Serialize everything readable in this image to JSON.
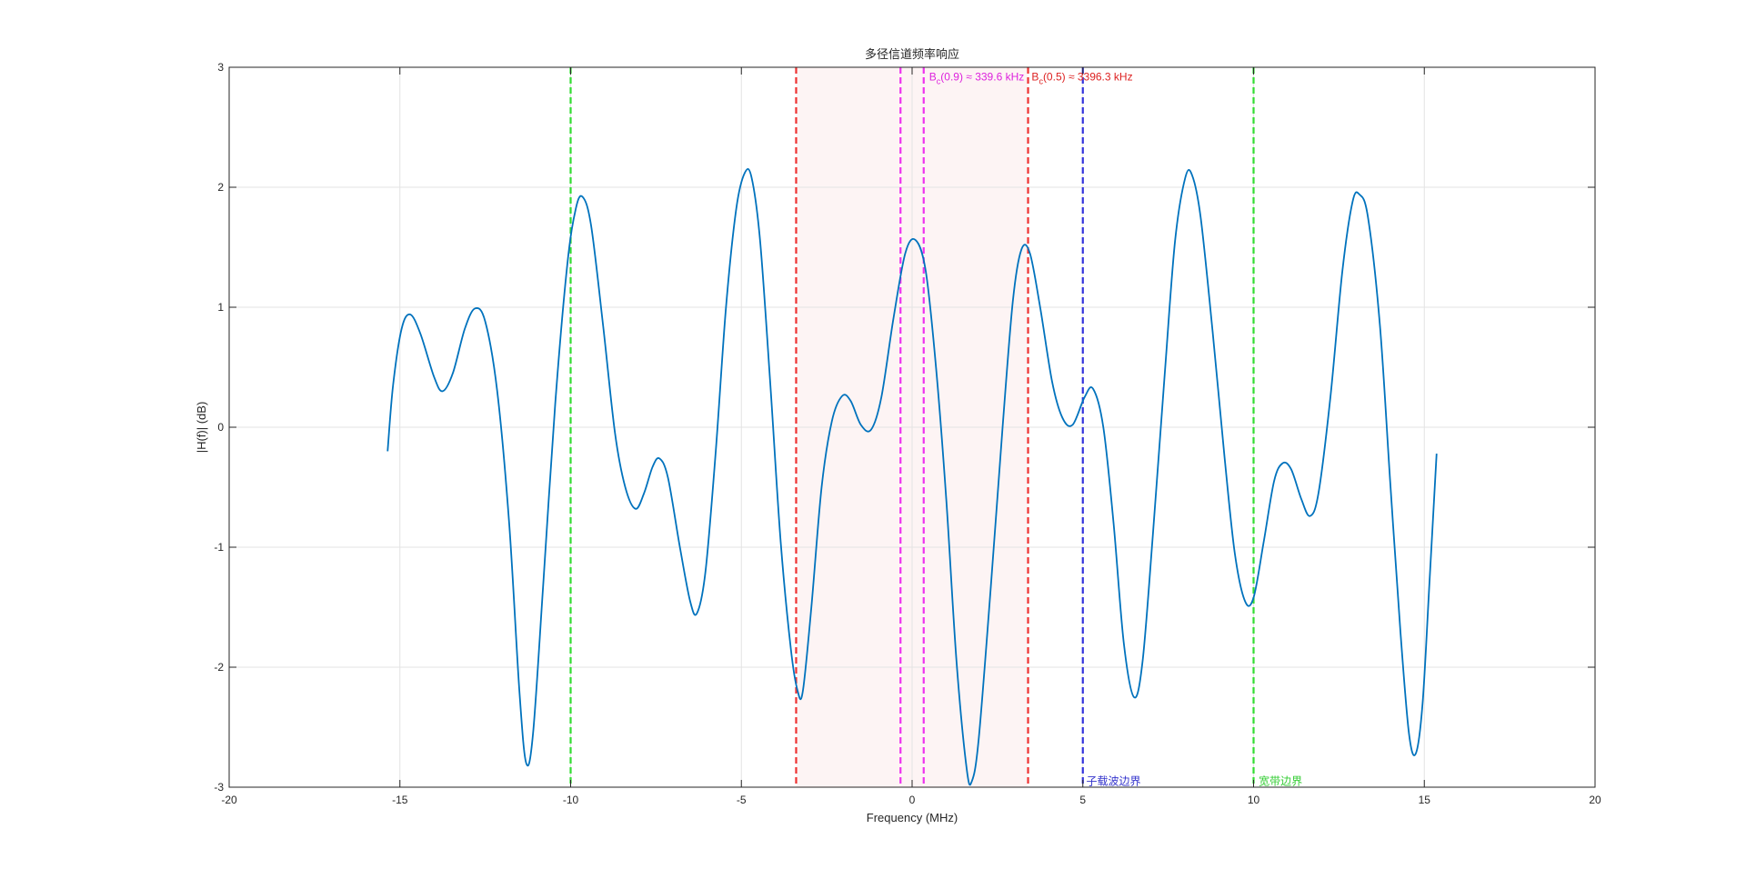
{
  "chart_data": {
    "type": "line",
    "title": "多径信道频率响应",
    "xlabel": "Frequency (MHz)",
    "ylabel": "|H(f)| (dB)",
    "xlim": [
      -20,
      20
    ],
    "ylim": [
      -3,
      3
    ],
    "xticks": [
      -20,
      -15,
      -10,
      -5,
      0,
      5,
      10,
      15,
      20
    ],
    "yticks": [
      -3,
      -2,
      -1,
      0,
      1,
      2,
      3
    ],
    "xtick_labels": [
      "-20",
      "-15",
      "-10",
      "-5",
      "0",
      "5",
      "10",
      "15",
      "20"
    ],
    "ytick_labels": [
      "-3",
      "-2",
      "-1",
      "0",
      "1",
      "2",
      "3"
    ],
    "grid": true,
    "series": [
      {
        "color": "#0072BD",
        "points": [
          [
            -15.36,
            -0.2
          ],
          [
            -15.2,
            0.35
          ],
          [
            -14.95,
            0.82
          ],
          [
            -14.7,
            0.94
          ],
          [
            -14.4,
            0.78
          ],
          [
            -14.0,
            0.42
          ],
          [
            -13.75,
            0.3
          ],
          [
            -13.45,
            0.45
          ],
          [
            -13.1,
            0.82
          ],
          [
            -12.8,
            0.99
          ],
          [
            -12.5,
            0.88
          ],
          [
            -12.15,
            0.3
          ],
          [
            -11.8,
            -0.8
          ],
          [
            -11.5,
            -2.2
          ],
          [
            -11.3,
            -2.8
          ],
          [
            -11.1,
            -2.55
          ],
          [
            -10.8,
            -1.3
          ],
          [
            -10.45,
            0.2
          ],
          [
            -10.1,
            1.35
          ],
          [
            -9.85,
            1.82
          ],
          [
            -9.65,
            1.92
          ],
          [
            -9.4,
            1.68
          ],
          [
            -9.05,
            0.85
          ],
          [
            -8.7,
            -0.05
          ],
          [
            -8.4,
            -0.5
          ],
          [
            -8.1,
            -0.68
          ],
          [
            -7.85,
            -0.55
          ],
          [
            -7.6,
            -0.33
          ],
          [
            -7.4,
            -0.26
          ],
          [
            -7.15,
            -0.42
          ],
          [
            -6.8,
            -1.0
          ],
          [
            -6.5,
            -1.45
          ],
          [
            -6.3,
            -1.55
          ],
          [
            -6.05,
            -1.2
          ],
          [
            -5.75,
            -0.2
          ],
          [
            -5.45,
            1.0
          ],
          [
            -5.15,
            1.82
          ],
          [
            -4.9,
            2.12
          ],
          [
            -4.7,
            2.08
          ],
          [
            -4.45,
            1.55
          ],
          [
            -4.15,
            0.35
          ],
          [
            -3.85,
            -0.95
          ],
          [
            -3.55,
            -1.85
          ],
          [
            -3.35,
            -2.2
          ],
          [
            -3.2,
            -2.2
          ],
          [
            -2.95,
            -1.5
          ],
          [
            -2.65,
            -0.5
          ],
          [
            -2.35,
            0.05
          ],
          [
            -2.05,
            0.26
          ],
          [
            -1.8,
            0.22
          ],
          [
            -1.5,
            0.02
          ],
          [
            -1.2,
            -0.02
          ],
          [
            -0.9,
            0.25
          ],
          [
            -0.55,
            0.9
          ],
          [
            -0.2,
            1.45
          ],
          [
            0.1,
            1.56
          ],
          [
            0.4,
            1.3
          ],
          [
            0.7,
            0.5
          ],
          [
            1.0,
            -0.6
          ],
          [
            1.3,
            -1.95
          ],
          [
            1.6,
            -2.85
          ],
          [
            1.75,
            -2.95
          ],
          [
            1.95,
            -2.6
          ],
          [
            2.3,
            -1.35
          ],
          [
            2.65,
            0.0
          ],
          [
            2.95,
            1.05
          ],
          [
            3.2,
            1.48
          ],
          [
            3.45,
            1.45
          ],
          [
            3.75,
            1.0
          ],
          [
            4.1,
            0.38
          ],
          [
            4.4,
            0.08
          ],
          [
            4.7,
            0.02
          ],
          [
            5.05,
            0.25
          ],
          [
            5.3,
            0.32
          ],
          [
            5.6,
            0.0
          ],
          [
            5.9,
            -0.8
          ],
          [
            6.2,
            -1.8
          ],
          [
            6.5,
            -2.25
          ],
          [
            6.75,
            -1.95
          ],
          [
            7.05,
            -0.9
          ],
          [
            7.4,
            0.45
          ],
          [
            7.7,
            1.55
          ],
          [
            8.0,
            2.08
          ],
          [
            8.2,
            2.1
          ],
          [
            8.45,
            1.75
          ],
          [
            8.8,
            0.8
          ],
          [
            9.15,
            -0.25
          ],
          [
            9.45,
            -1.05
          ],
          [
            9.75,
            -1.45
          ],
          [
            10.0,
            -1.42
          ],
          [
            10.3,
            -0.95
          ],
          [
            10.6,
            -0.45
          ],
          [
            10.85,
            -0.3
          ],
          [
            11.1,
            -0.35
          ],
          [
            11.4,
            -0.6
          ],
          [
            11.65,
            -0.74
          ],
          [
            11.9,
            -0.55
          ],
          [
            12.25,
            0.25
          ],
          [
            12.6,
            1.3
          ],
          [
            12.9,
            1.88
          ],
          [
            13.1,
            1.94
          ],
          [
            13.35,
            1.75
          ],
          [
            13.7,
            0.85
          ],
          [
            14.0,
            -0.45
          ],
          [
            14.3,
            -1.7
          ],
          [
            14.55,
            -2.55
          ],
          [
            14.75,
            -2.72
          ],
          [
            14.95,
            -2.3
          ],
          [
            15.15,
            -1.3
          ],
          [
            15.36,
            -0.22
          ]
        ]
      }
    ],
    "regions": [
      {
        "x0": -3.3963,
        "x1": 3.3963,
        "fill": "#fdf4f4"
      }
    ],
    "vlines": [
      {
        "x": -10,
        "color": "#33dd33",
        "style": "dashed"
      },
      {
        "x": 10,
        "color": "#33dd33",
        "style": "dashed"
      },
      {
        "x": -3.3963,
        "color": "#ee3333",
        "style": "dashed"
      },
      {
        "x": 3.3963,
        "color": "#ee3333",
        "style": "dashed"
      },
      {
        "x": -0.3396,
        "color": "#ee33ee",
        "style": "dashed"
      },
      {
        "x": 0.3396,
        "color": "#ee33ee",
        "style": "dashed"
      },
      {
        "x": 5.0,
        "color": "#3333dd",
        "style": "dashed"
      }
    ],
    "annotations": [
      {
        "id": "bc09",
        "x": 0.5,
        "y": 2.92,
        "color": "#dd22dd",
        "main": "B",
        "sub": "c",
        "rest": "(0.9) ≈ 339.6 kHz"
      },
      {
        "id": "bc05",
        "x": 3.5,
        "y": 2.92,
        "color": "#dd2222",
        "main": "B",
        "sub": "c",
        "rest": "(0.5) ≈ 3396.3 kHz"
      },
      {
        "id": "subcarrier",
        "x": 5.1,
        "y": -2.95,
        "color": "#3333cc",
        "text": "子载波边界"
      },
      {
        "id": "wideband",
        "x": 10.15,
        "y": -2.95,
        "color": "#33cc33",
        "text": "宽带边界"
      }
    ]
  }
}
